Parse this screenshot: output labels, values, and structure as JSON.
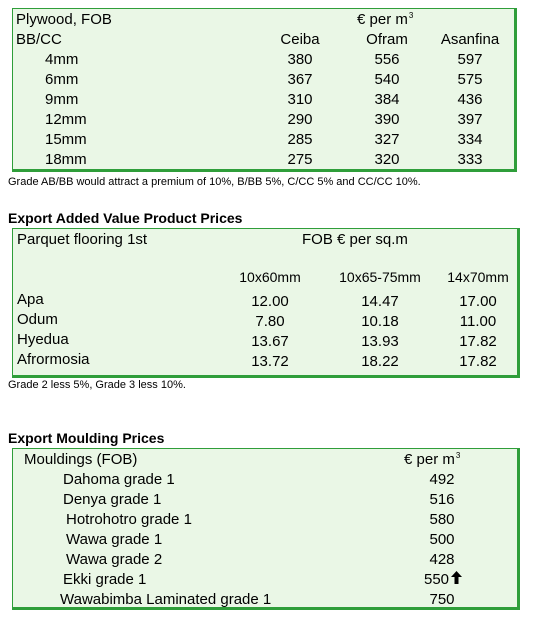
{
  "plywood": {
    "title": "Plywood, FOB",
    "unit_label": "€ per m",
    "unit_sup": "3",
    "grade_label": "BB/CC",
    "columns": [
      "Ceiba",
      "Ofram",
      "Asanfina"
    ],
    "rows": [
      {
        "size": "4mm",
        "values": [
          "380",
          "556",
          "597"
        ]
      },
      {
        "size": "6mm",
        "values": [
          "367",
          "540",
          "575"
        ]
      },
      {
        "size": "9mm",
        "values": [
          "310",
          "384",
          "436"
        ]
      },
      {
        "size": "12mm",
        "values": [
          "290",
          "390",
          "397"
        ]
      },
      {
        "size": "15mm",
        "values": [
          "285",
          "327",
          "334"
        ]
      },
      {
        "size": "18mm",
        "values": [
          "275",
          "320",
          "333"
        ]
      }
    ],
    "note": "Grade AB/BB would attract a premium of 10%, B/BB 5%, C/CC 5% and CC/CC 10%."
  },
  "added_value": {
    "heading": "Export Added Value Product Prices",
    "product": "Parquet flooring 1st",
    "unit_label": "FOB € per sq.m",
    "columns": [
      "10x60mm",
      "10x65-75mm",
      "14x70mm"
    ],
    "rows": [
      {
        "species": "Apa",
        "values": [
          "12.00",
          "14.47",
          "17.00"
        ]
      },
      {
        "species": "Odum",
        "values": [
          "7.80",
          "10.18",
          "11.00"
        ]
      },
      {
        "species": "Hyedua",
        "values": [
          "13.67",
          "13.93",
          "17.82"
        ]
      },
      {
        "species": "Afrormosia",
        "values": [
          "13.72",
          "18.22",
          "17.82"
        ]
      }
    ],
    "note": "Grade 2 less 5%, Grade 3 less 10%."
  },
  "moulding": {
    "heading": "Export Moulding Prices",
    "label": "Mouldings (FOB)",
    "unit_label": "€ per m",
    "unit_sup": "3",
    "rows": [
      {
        "name": "Dahoma grade 1",
        "value": "492",
        "trend": ""
      },
      {
        "name": "Denya grade 1",
        "value": "516",
        "trend": ""
      },
      {
        "name": "Hotrohotro grade 1",
        "value": "580",
        "trend": ""
      },
      {
        "name": "Wawa grade 1",
        "value": "500",
        "trend": ""
      },
      {
        "name": "Wawa grade 2",
        "value": "428",
        "trend": ""
      },
      {
        "name": "Ekki grade 1",
        "value": "550",
        "trend": "up"
      },
      {
        "name": "Wawabimba Laminated grade 1",
        "value": "750",
        "trend": ""
      }
    ],
    "trend_icon": "up-arrow-icon"
  },
  "colors": {
    "box_fill": "#eaf7e6",
    "box_border": "#2f9e3a"
  }
}
